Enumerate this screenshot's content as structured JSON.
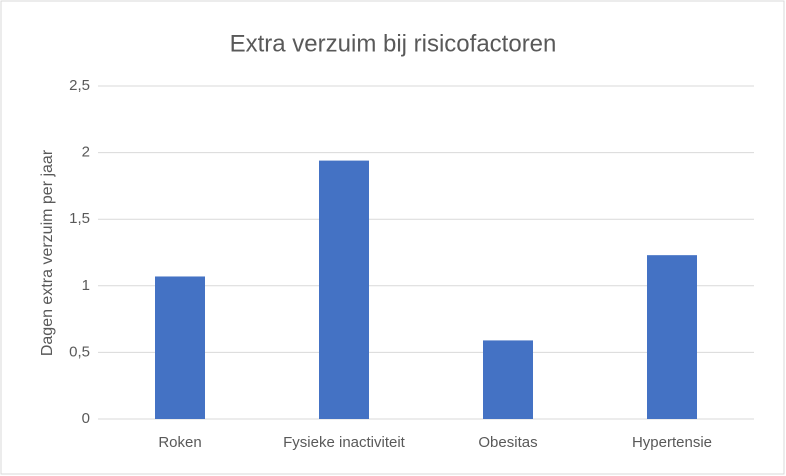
{
  "chart_data": {
    "type": "bar",
    "title": "Extra verzuim bij risicofactoren",
    "y_label": "Dagen extra verzuim per jaar",
    "categories": [
      "Roken",
      "Fysieke inactiviteit",
      "Obesitas",
      "Hypertensie"
    ],
    "values": [
      1.07,
      1.94,
      0.59,
      1.23
    ],
    "color": "#4472c4",
    "ylim": [
      0,
      2.5
    ],
    "yticks": [
      0,
      {
        "value": 0.5,
        "label": "0,5"
      },
      1,
      {
        "value": 1.5,
        "label": "1,5"
      },
      2,
      {
        "value": 2.5,
        "label": "2,5"
      }
    ],
    "grid": true
  }
}
